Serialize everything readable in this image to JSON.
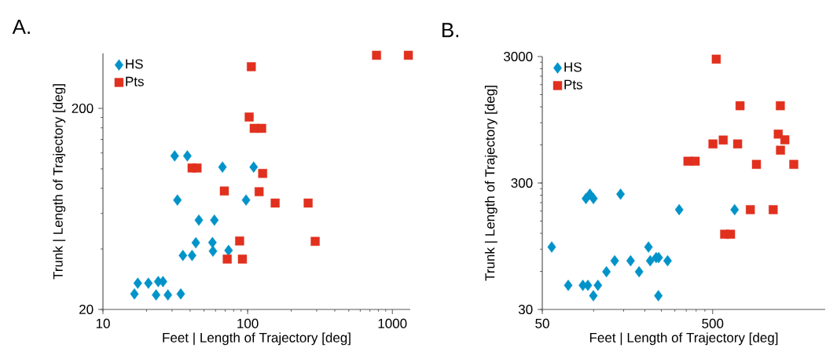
{
  "chart_data": [
    {
      "type": "scatter",
      "title": "A.",
      "xlabel": "Feet | Length of Trajectory [deg]",
      "ylabel": "Trunk | Length of Trajectory [deg]",
      "log": "xy",
      "legend": "top left",
      "xlim": [
        10,
        1330
      ],
      "ylim": [
        20,
        375
      ],
      "xticks": [
        10,
        100,
        1000
      ],
      "yticks": [
        20,
        200
      ],
      "series": [
        {
          "name": "HS",
          "color": "#0093c9",
          "marker": "diamond",
          "x": [
            31.3,
            38.3,
            67,
            110,
            32.7,
            97.5,
            46,
            58.9,
            43.8,
            57.1,
            57.6,
            73.8,
            35.7,
            41.3,
            17.4,
            20.6,
            24.1,
            26,
            16.5,
            23.3,
            28.1,
            34.5
          ],
          "values": [
            116,
            116,
            102,
            102,
            70,
            70,
            55.6,
            55.6,
            42.9,
            43,
            39,
            39.3,
            37.1,
            37.1,
            27,
            27,
            27.5,
            27.5,
            23.9,
            23.6,
            23.6,
            23.9
          ]
        },
        {
          "name": "Pts",
          "color": "#e1301e",
          "marker": "square",
          "x": [
            778,
            1290,
            106,
            102.5,
            111,
            125,
            41.3,
            44.7,
            127,
            69,
            120,
            155,
            262,
            88,
            293,
            72.3,
            92
          ],
          "values": [
            367,
            367,
            322,
            181,
            159,
            159,
            101,
            101,
            94.9,
            77.6,
            77,
            67.6,
            67.6,
            43.8,
            43.6,
            35.6,
            35.6
          ]
        }
      ]
    },
    {
      "type": "scatter",
      "title": "B.",
      "xlabel": "Feet | Length of Trajectory [deg]",
      "ylabel": "Trunk | Length of Trajectory [deg]",
      "log": "xy",
      "legend": "top left",
      "xlim": [
        50,
        2290
      ],
      "ylim": [
        30,
        3000
      ],
      "xticks": [
        50,
        500
      ],
      "yticks": [
        30,
        300,
        3000
      ],
      "series": [
        {
          "name": "HS",
          "color": "#0093c9",
          "marker": "diamond",
          "x": [
            56.8,
            71,
            86.5,
            92.6,
            106,
            99.7,
            90.2,
            95.1,
            99.8,
            144,
            119,
            133,
            165,
            185,
            210,
            215,
            233,
            241,
            272,
            240,
            318,
            673
          ],
          "values": [
            93.4,
            46.5,
            46.5,
            46.5,
            46.5,
            38.5,
            226,
            245,
            226,
            245,
            59.6,
            72.8,
            72.8,
            59.6,
            93.4,
            72.8,
            77.1,
            77.1,
            72.8,
            38.5,
            184.6,
            184.6
          ]
        },
        {
          "name": "Pts",
          "color": "#e1301e",
          "marker": "square",
          "x": [
            525,
            358,
            395,
            502,
            577,
            701,
            724,
            1248,
            1214,
            1327,
            1251,
            904,
            1497,
            832,
            1133,
            588,
            637
          ],
          "values": [
            2860,
            446,
            446,
            611,
            656,
            611,
            1225,
            1225,
            731,
            659,
            545,
            421,
            421,
            184.6,
            184.6,
            118,
            118
          ]
        }
      ]
    }
  ]
}
